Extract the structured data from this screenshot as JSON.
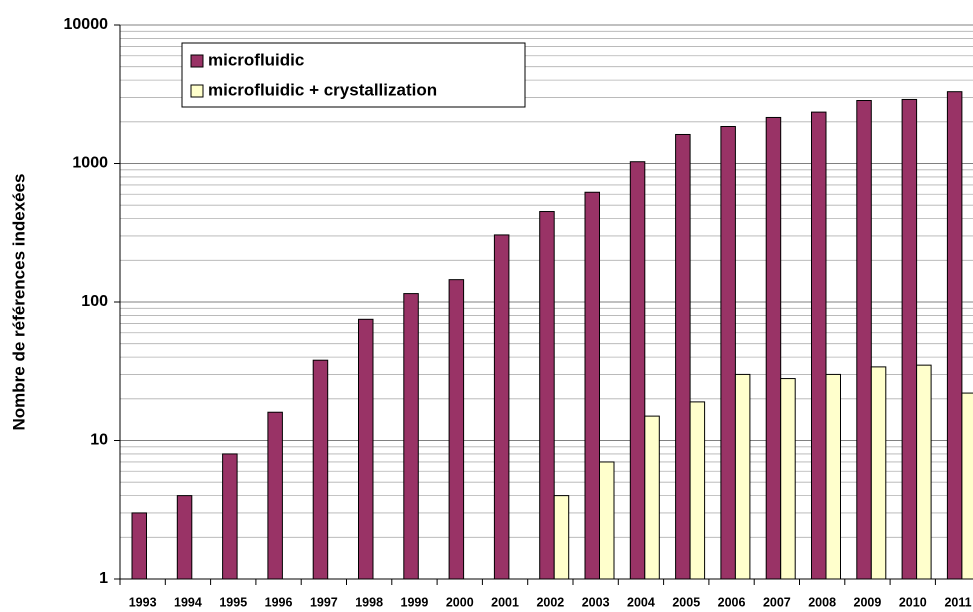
{
  "chart_data": {
    "type": "bar",
    "y_label": "Nombre de références indexées",
    "categories": [
      "1993",
      "1994",
      "1995",
      "1996",
      "1997",
      "1998",
      "1999",
      "2000",
      "2001",
      "2002",
      "2003",
      "2004",
      "2005",
      "2006",
      "2007",
      "2008",
      "2009",
      "2010",
      "2011"
    ],
    "series": [
      {
        "name": "microfluidic",
        "color": "#993366",
        "values": [
          3,
          4,
          8,
          16,
          38,
          75,
          115,
          145,
          305,
          450,
          620,
          1030,
          1620,
          1850,
          2150,
          2350,
          2850,
          2900,
          3300
        ]
      },
      {
        "name": "microfluidic + crystallization",
        "color": "#ffffcc",
        "values": [
          null,
          null,
          null,
          null,
          null,
          null,
          null,
          null,
          null,
          4,
          7,
          15,
          19,
          30,
          28,
          30,
          34,
          35,
          22
        ]
      }
    ],
    "ylim": [
      1,
      10000
    ],
    "yticks": [
      1,
      10,
      100,
      1000,
      10000
    ],
    "log_scale": true,
    "grid": true,
    "legend": "upper left"
  }
}
